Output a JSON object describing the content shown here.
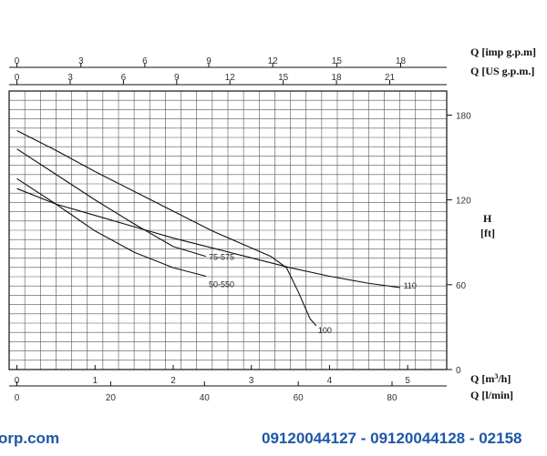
{
  "chart_data": {
    "type": "line",
    "title": "",
    "xlabel": "Q [m³/h]",
    "ylabel": "H [ft]",
    "x_m3h": {
      "label": "Q [m³/h]",
      "range": [
        -0.1,
        5.5
      ],
      "ticks": [
        0,
        1,
        2,
        3,
        4,
        5
      ]
    },
    "x_lmin": {
      "label": "Q [l/min]",
      "range": [
        -1.667,
        91.667
      ],
      "ticks": [
        0,
        20,
        40,
        60,
        80
      ]
    },
    "x_imp": {
      "label": "Q [imp g.p.m]",
      "range": [
        -0.367,
        20.16
      ],
      "ticks": [
        0,
        3,
        6,
        9,
        12,
        15,
        18
      ]
    },
    "x_us": {
      "label": "Q [US g.p.m.]",
      "range": [
        -0.44,
        24.21
      ],
      "ticks": [
        0,
        3,
        6,
        9,
        12,
        15,
        18,
        21
      ]
    },
    "y_ft": {
      "label": "H [ft]",
      "label_line1": "H",
      "label_line2": "[ft]",
      "range": [
        0,
        197
      ],
      "ticks": [
        0,
        60,
        120,
        180
      ]
    },
    "grid": true,
    "series": [
      {
        "name": "110",
        "label": "110",
        "points": [
          [
            0,
            128
          ],
          [
            0.5,
            117
          ],
          [
            1,
            109
          ],
          [
            1.5,
            101
          ],
          [
            2,
            93
          ],
          [
            2.5,
            86
          ],
          [
            3,
            79
          ],
          [
            3.5,
            72
          ],
          [
            4,
            66
          ],
          [
            4.5,
            61
          ],
          [
            4.9,
            58
          ]
        ]
      },
      {
        "name": "100",
        "label": "100",
        "points": [
          [
            0,
            169
          ],
          [
            0.5,
            155
          ],
          [
            1,
            140
          ],
          [
            1.5,
            126
          ],
          [
            2,
            112
          ],
          [
            2.5,
            98
          ],
          [
            3,
            86
          ],
          [
            3.25,
            80
          ],
          [
            3.45,
            72
          ],
          [
            3.6,
            55
          ],
          [
            3.75,
            36
          ],
          [
            3.83,
            31
          ]
        ]
      },
      {
        "name": "75-575",
        "label": "75-575",
        "points": [
          [
            0,
            156
          ],
          [
            0.5,
            138
          ],
          [
            1,
            120
          ],
          [
            1.5,
            103
          ],
          [
            2,
            87
          ],
          [
            2.42,
            80
          ]
        ]
      },
      {
        "name": "50-550",
        "label": "50-550",
        "points": [
          [
            0,
            135
          ],
          [
            0.5,
            117
          ],
          [
            1,
            98
          ],
          [
            1.5,
            83
          ],
          [
            2,
            72
          ],
          [
            2.42,
            66
          ]
        ]
      }
    ]
  },
  "footer": {
    "left_text": "orp.com",
    "right_text": "09120044127 - 09120044128 - 02158"
  }
}
